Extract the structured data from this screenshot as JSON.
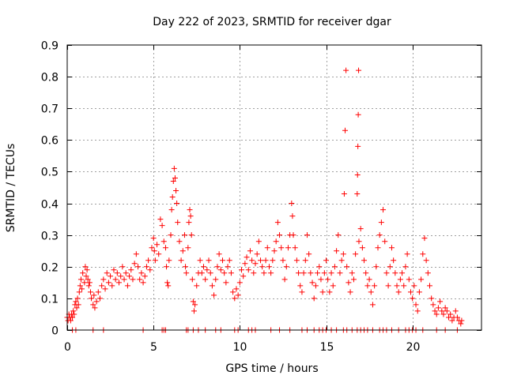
{
  "chart_data": {
    "type": "scatter",
    "title": "Day 222 of 2023, SRMTID for receiver dgar",
    "xlabel": "GPS time / hours",
    "ylabel": "SRMTID / TECUs",
    "xlim": [
      0,
      24
    ],
    "ylim": [
      0,
      0.9
    ],
    "xticks": [
      0,
      5,
      10,
      15,
      20
    ],
    "xtick_labels": [
      "0",
      "5",
      "10",
      "15",
      "20"
    ],
    "yticks": [
      0,
      0.1,
      0.2,
      0.3,
      0.4,
      0.5,
      0.6,
      0.7,
      0.8,
      0.9
    ],
    "ytick_labels": [
      "0",
      "0.1",
      "0.2",
      "0.3",
      "0.4",
      "0.5",
      "0.6",
      "0.7",
      "0.8",
      "0.9"
    ],
    "grid": true,
    "marker": "+",
    "series": [
      {
        "name": "SRMTID",
        "color": "#ff0000",
        "points": [
          [
            0.0,
            0.04
          ],
          [
            0.05,
            0.03
          ],
          [
            0.1,
            0.05
          ],
          [
            0.15,
            0.04
          ],
          [
            0.2,
            0.03
          ],
          [
            0.25,
            0.05
          ],
          [
            0.3,
            0.04
          ],
          [
            0.35,
            0.06
          ],
          [
            0.4,
            0.05
          ],
          [
            0.45,
            0.08
          ],
          [
            0.5,
            0.09
          ],
          [
            0.55,
            0.07
          ],
          [
            0.6,
            0.1
          ],
          [
            0.65,
            0.08
          ],
          [
            0.7,
            0.12
          ],
          [
            0.75,
            0.14
          ],
          [
            0.8,
            0.16
          ],
          [
            0.85,
            0.13
          ],
          [
            0.9,
            0.18
          ],
          [
            1.0,
            0.15
          ],
          [
            1.05,
            0.2
          ],
          [
            1.1,
            0.17
          ],
          [
            1.15,
            0.19
          ],
          [
            1.2,
            0.16
          ],
          [
            1.25,
            0.14
          ],
          [
            1.3,
            0.15
          ],
          [
            1.35,
            0.12
          ],
          [
            1.4,
            0.1
          ],
          [
            1.5,
            0.08
          ],
          [
            1.55,
            0.11
          ],
          [
            1.6,
            0.07
          ],
          [
            1.7,
            0.09
          ],
          [
            1.8,
            0.12
          ],
          [
            1.9,
            0.1
          ],
          [
            2.0,
            0.14
          ],
          [
            2.1,
            0.16
          ],
          [
            2.2,
            0.13
          ],
          [
            2.3,
            0.18
          ],
          [
            2.4,
            0.15
          ],
          [
            2.5,
            0.17
          ],
          [
            2.6,
            0.14
          ],
          [
            2.7,
            0.19
          ],
          [
            2.8,
            0.16
          ],
          [
            2.9,
            0.18
          ],
          [
            3.0,
            0.15
          ],
          [
            3.1,
            0.17
          ],
          [
            3.2,
            0.2
          ],
          [
            3.3,
            0.16
          ],
          [
            3.4,
            0.18
          ],
          [
            3.5,
            0.14
          ],
          [
            3.6,
            0.17
          ],
          [
            3.7,
            0.19
          ],
          [
            3.8,
            0.16
          ],
          [
            3.9,
            0.21
          ],
          [
            4.0,
            0.24
          ],
          [
            4.1,
            0.2
          ],
          [
            4.2,
            0.16
          ],
          [
            4.3,
            0.18
          ],
          [
            4.4,
            0.15
          ],
          [
            4.5,
            0.17
          ],
          [
            4.6,
            0.2
          ],
          [
            4.7,
            0.22
          ],
          [
            4.8,
            0.19
          ],
          [
            4.9,
            0.26
          ],
          [
            5.0,
            0.29
          ],
          [
            5.05,
            0.25
          ],
          [
            5.1,
            0.22
          ],
          [
            5.2,
            0.27
          ],
          [
            5.3,
            0.24
          ],
          [
            5.4,
            0.35
          ],
          [
            5.5,
            0.33
          ],
          [
            5.6,
            0.28
          ],
          [
            5.7,
            0.26
          ],
          [
            5.75,
            0.2
          ],
          [
            5.8,
            0.15
          ],
          [
            5.85,
            0.14
          ],
          [
            5.9,
            0.22
          ],
          [
            6.0,
            0.3
          ],
          [
            6.05,
            0.38
          ],
          [
            6.1,
            0.42
          ],
          [
            6.15,
            0.47
          ],
          [
            6.2,
            0.51
          ],
          [
            6.25,
            0.48
          ],
          [
            6.3,
            0.44
          ],
          [
            6.35,
            0.4
          ],
          [
            6.4,
            0.34
          ],
          [
            6.5,
            0.28
          ],
          [
            6.6,
            0.22
          ],
          [
            6.7,
            0.25
          ],
          [
            6.8,
            0.3
          ],
          [
            6.85,
            0.2
          ],
          [
            6.9,
            0.18
          ],
          [
            7.0,
            0.26
          ],
          [
            7.05,
            0.34
          ],
          [
            7.1,
            0.38
          ],
          [
            7.15,
            0.36
          ],
          [
            7.2,
            0.3
          ],
          [
            7.25,
            0.16
          ],
          [
            7.3,
            0.09
          ],
          [
            7.35,
            0.06
          ],
          [
            7.4,
            0.08
          ],
          [
            7.5,
            0.14
          ],
          [
            7.6,
            0.18
          ],
          [
            7.7,
            0.22
          ],
          [
            7.8,
            0.18
          ],
          [
            7.9,
            0.2
          ],
          [
            8.0,
            0.16
          ],
          [
            8.1,
            0.19
          ],
          [
            8.2,
            0.22
          ],
          [
            8.3,
            0.18
          ],
          [
            8.4,
            0.14
          ],
          [
            8.5,
            0.11
          ],
          [
            8.6,
            0.16
          ],
          [
            8.7,
            0.2
          ],
          [
            8.8,
            0.24
          ],
          [
            8.9,
            0.19
          ],
          [
            9.0,
            0.22
          ],
          [
            9.1,
            0.18
          ],
          [
            9.2,
            0.15
          ],
          [
            9.3,
            0.2
          ],
          [
            9.4,
            0.22
          ],
          [
            9.5,
            0.18
          ],
          [
            9.6,
            0.12
          ],
          [
            9.7,
            0.1
          ],
          [
            9.8,
            0.13
          ],
          [
            9.9,
            0.11
          ],
          [
            10.0,
            0.15
          ],
          [
            10.1,
            0.19
          ],
          [
            10.2,
            0.17
          ],
          [
            10.3,
            0.21
          ],
          [
            10.4,
            0.23
          ],
          [
            10.5,
            0.19
          ],
          [
            10.6,
            0.25
          ],
          [
            10.7,
            0.22
          ],
          [
            10.8,
            0.18
          ],
          [
            10.9,
            0.21
          ],
          [
            11.0,
            0.24
          ],
          [
            11.1,
            0.28
          ],
          [
            11.2,
            0.22
          ],
          [
            11.3,
            0.2
          ],
          [
            11.4,
            0.18
          ],
          [
            11.5,
            0.22
          ],
          [
            11.6,
            0.26
          ],
          [
            11.7,
            0.2
          ],
          [
            11.8,
            0.18
          ],
          [
            11.9,
            0.22
          ],
          [
            12.0,
            0.25
          ],
          [
            12.1,
            0.28
          ],
          [
            12.2,
            0.34
          ],
          [
            12.3,
            0.3
          ],
          [
            12.4,
            0.26
          ],
          [
            12.5,
            0.22
          ],
          [
            12.6,
            0.16
          ],
          [
            12.7,
            0.2
          ],
          [
            12.8,
            0.26
          ],
          [
            12.9,
            0.3
          ],
          [
            13.0,
            0.4
          ],
          [
            13.05,
            0.36
          ],
          [
            13.1,
            0.3
          ],
          [
            13.2,
            0.26
          ],
          [
            13.3,
            0.22
          ],
          [
            13.4,
            0.18
          ],
          [
            13.5,
            0.14
          ],
          [
            13.6,
            0.12
          ],
          [
            13.7,
            0.18
          ],
          [
            13.8,
            0.22
          ],
          [
            13.9,
            0.3
          ],
          [
            14.0,
            0.24
          ],
          [
            14.1,
            0.18
          ],
          [
            14.2,
            0.15
          ],
          [
            14.3,
            0.1
          ],
          [
            14.4,
            0.14
          ],
          [
            14.5,
            0.18
          ],
          [
            14.6,
            0.2
          ],
          [
            14.7,
            0.16
          ],
          [
            14.8,
            0.12
          ],
          [
            14.9,
            0.18
          ],
          [
            15.0,
            0.22
          ],
          [
            15.1,
            0.16
          ],
          [
            15.2,
            0.12
          ],
          [
            15.3,
            0.18
          ],
          [
            15.4,
            0.14
          ],
          [
            15.5,
            0.2
          ],
          [
            15.6,
            0.25
          ],
          [
            15.7,
            0.3
          ],
          [
            15.8,
            0.18
          ],
          [
            15.9,
            0.22
          ],
          [
            16.0,
            0.24
          ],
          [
            16.05,
            0.43
          ],
          [
            16.1,
            0.63
          ],
          [
            16.15,
            0.82
          ],
          [
            16.2,
            0.2
          ],
          [
            16.3,
            0.15
          ],
          [
            16.4,
            0.12
          ],
          [
            16.5,
            0.18
          ],
          [
            16.6,
            0.16
          ],
          [
            16.7,
            0.24
          ],
          [
            16.8,
            0.43
          ],
          [
            16.82,
            0.49
          ],
          [
            16.84,
            0.58
          ],
          [
            16.86,
            0.68
          ],
          [
            16.88,
            0.82
          ],
          [
            16.9,
            0.28
          ],
          [
            17.0,
            0.32
          ],
          [
            17.1,
            0.26
          ],
          [
            17.2,
            0.22
          ],
          [
            17.3,
            0.18
          ],
          [
            17.4,
            0.14
          ],
          [
            17.5,
            0.16
          ],
          [
            17.6,
            0.12
          ],
          [
            17.7,
            0.08
          ],
          [
            17.8,
            0.14
          ],
          [
            17.9,
            0.2
          ],
          [
            18.0,
            0.26
          ],
          [
            18.1,
            0.3
          ],
          [
            18.2,
            0.34
          ],
          [
            18.3,
            0.38
          ],
          [
            18.4,
            0.28
          ],
          [
            18.5,
            0.18
          ],
          [
            18.6,
            0.14
          ],
          [
            18.7,
            0.2
          ],
          [
            18.8,
            0.26
          ],
          [
            18.9,
            0.22
          ],
          [
            19.0,
            0.18
          ],
          [
            19.1,
            0.14
          ],
          [
            19.2,
            0.12
          ],
          [
            19.3,
            0.16
          ],
          [
            19.4,
            0.18
          ],
          [
            19.5,
            0.14
          ],
          [
            19.6,
            0.2
          ],
          [
            19.7,
            0.24
          ],
          [
            19.8,
            0.16
          ],
          [
            19.9,
            0.12
          ],
          [
            20.0,
            0.1
          ],
          [
            20.1,
            0.14
          ],
          [
            20.2,
            0.08
          ],
          [
            20.3,
            0.06
          ],
          [
            20.4,
            0.12
          ],
          [
            20.5,
            0.16
          ],
          [
            20.6,
            0.24
          ],
          [
            20.7,
            0.29
          ],
          [
            20.8,
            0.22
          ],
          [
            20.9,
            0.18
          ],
          [
            21.0,
            0.14
          ],
          [
            21.1,
            0.1
          ],
          [
            21.2,
            0.08
          ],
          [
            21.3,
            0.06
          ],
          [
            21.4,
            0.05
          ],
          [
            21.5,
            0.07
          ],
          [
            21.6,
            0.09
          ],
          [
            21.7,
            0.06
          ],
          [
            21.8,
            0.05
          ],
          [
            21.9,
            0.07
          ],
          [
            22.0,
            0.06
          ],
          [
            22.1,
            0.04
          ],
          [
            22.2,
            0.05
          ],
          [
            22.3,
            0.03
          ],
          [
            22.4,
            0.04
          ],
          [
            22.5,
            0.06
          ],
          [
            22.6,
            0.04
          ],
          [
            22.7,
            0.03
          ],
          [
            22.8,
            0.02
          ],
          [
            22.85,
            0.03
          ],
          [
            0.3,
            0
          ],
          [
            0.5,
            0
          ],
          [
            1.5,
            0
          ],
          [
            2.1,
            0
          ],
          [
            4.4,
            0
          ],
          [
            5.5,
            0
          ],
          [
            5.6,
            0
          ],
          [
            5.7,
            0
          ],
          [
            6.9,
            0
          ],
          [
            7.0,
            0
          ],
          [
            7.3,
            0
          ],
          [
            7.6,
            0
          ],
          [
            8.0,
            0
          ],
          [
            8.6,
            0
          ],
          [
            8.9,
            0
          ],
          [
            9.7,
            0
          ],
          [
            9.9,
            0
          ],
          [
            10.5,
            0
          ],
          [
            10.7,
            0
          ],
          [
            10.9,
            0
          ],
          [
            11.8,
            0
          ],
          [
            12.3,
            0
          ],
          [
            12.9,
            0
          ],
          [
            13.6,
            0
          ],
          [
            13.9,
            0
          ],
          [
            14.3,
            0
          ],
          [
            14.6,
            0
          ],
          [
            14.8,
            0
          ],
          [
            15.0,
            0
          ],
          [
            15.3,
            0
          ],
          [
            15.6,
            0
          ],
          [
            16.0,
            0
          ],
          [
            16.2,
            0
          ],
          [
            16.5,
            0
          ],
          [
            16.8,
            0
          ],
          [
            17.0,
            0
          ],
          [
            17.2,
            0
          ],
          [
            17.4,
            0
          ],
          [
            17.7,
            0
          ],
          [
            18.1,
            0
          ],
          [
            18.3,
            0
          ],
          [
            18.5,
            0
          ],
          [
            18.8,
            0
          ],
          [
            19.2,
            0
          ],
          [
            19.6,
            0
          ],
          [
            19.8,
            0
          ],
          [
            20.0,
            0
          ],
          [
            20.2,
            0
          ],
          [
            20.6,
            0
          ],
          [
            21.4,
            0
          ],
          [
            21.9,
            0
          ],
          [
            22.6,
            0
          ]
        ]
      }
    ]
  }
}
